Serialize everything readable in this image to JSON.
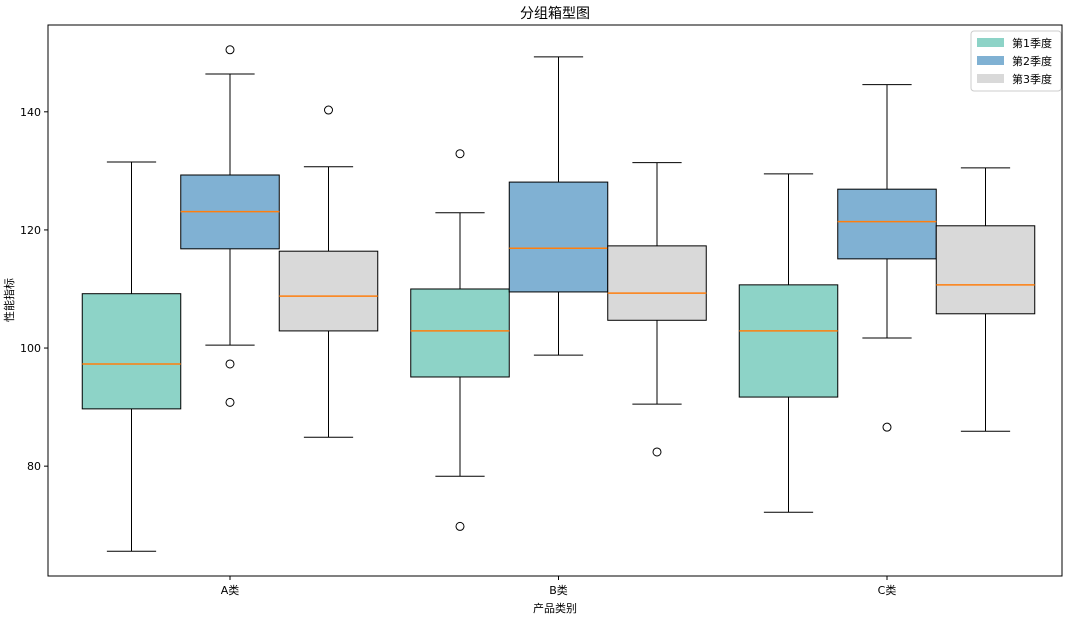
{
  "chart_data": {
    "type": "box",
    "title": "分组箱型图",
    "xlabel": "产品类别",
    "ylabel": "性能指标",
    "categories": [
      "A类",
      "B类",
      "C类"
    ],
    "ylim": [
      61.4,
      154.7
    ],
    "yticks": [
      80,
      100,
      120,
      140
    ],
    "grid": false,
    "legend_position": "top-right",
    "median_color": "#ff7f0e",
    "series": [
      {
        "name": "第1季度",
        "color": "#8dd3c7",
        "boxes": [
          {
            "whisker_low": 65.6,
            "q1": 89.7,
            "median": 97.3,
            "q3": 109.2,
            "whisker_high": 131.5,
            "outliers": []
          },
          {
            "whisker_low": 78.3,
            "q1": 95.1,
            "median": 102.9,
            "q3": 110.0,
            "whisker_high": 122.9,
            "outliers": [
              132.9,
              69.8
            ]
          },
          {
            "whisker_low": 72.2,
            "q1": 91.7,
            "median": 102.9,
            "q3": 110.7,
            "whisker_high": 129.5,
            "outliers": []
          }
        ]
      },
      {
        "name": "第2季度",
        "color": "#80b1d3",
        "boxes": [
          {
            "whisker_low": 100.5,
            "q1": 116.8,
            "median": 123.1,
            "q3": 129.3,
            "whisker_high": 146.4,
            "outliers": [
              150.5,
              97.3,
              90.8
            ]
          },
          {
            "whisker_low": 98.8,
            "q1": 109.5,
            "median": 116.9,
            "q3": 128.1,
            "whisker_high": 149.3,
            "outliers": []
          },
          {
            "whisker_low": 101.7,
            "q1": 115.1,
            "median": 121.4,
            "q3": 126.9,
            "whisker_high": 144.6,
            "outliers": [
              86.6
            ]
          }
        ]
      },
      {
        "name": "第3季度",
        "color": "#d9d9d9",
        "boxes": [
          {
            "whisker_low": 84.9,
            "q1": 102.9,
            "median": 108.8,
            "q3": 116.4,
            "whisker_high": 130.7,
            "outliers": [
              140.3
            ]
          },
          {
            "whisker_low": 90.5,
            "q1": 104.7,
            "median": 109.3,
            "q3": 117.3,
            "whisker_high": 131.4,
            "outliers": [
              82.4
            ]
          },
          {
            "whisker_low": 85.9,
            "q1": 105.8,
            "median": 110.7,
            "q3": 120.7,
            "whisker_high": 130.5,
            "outliers": []
          }
        ]
      }
    ]
  }
}
